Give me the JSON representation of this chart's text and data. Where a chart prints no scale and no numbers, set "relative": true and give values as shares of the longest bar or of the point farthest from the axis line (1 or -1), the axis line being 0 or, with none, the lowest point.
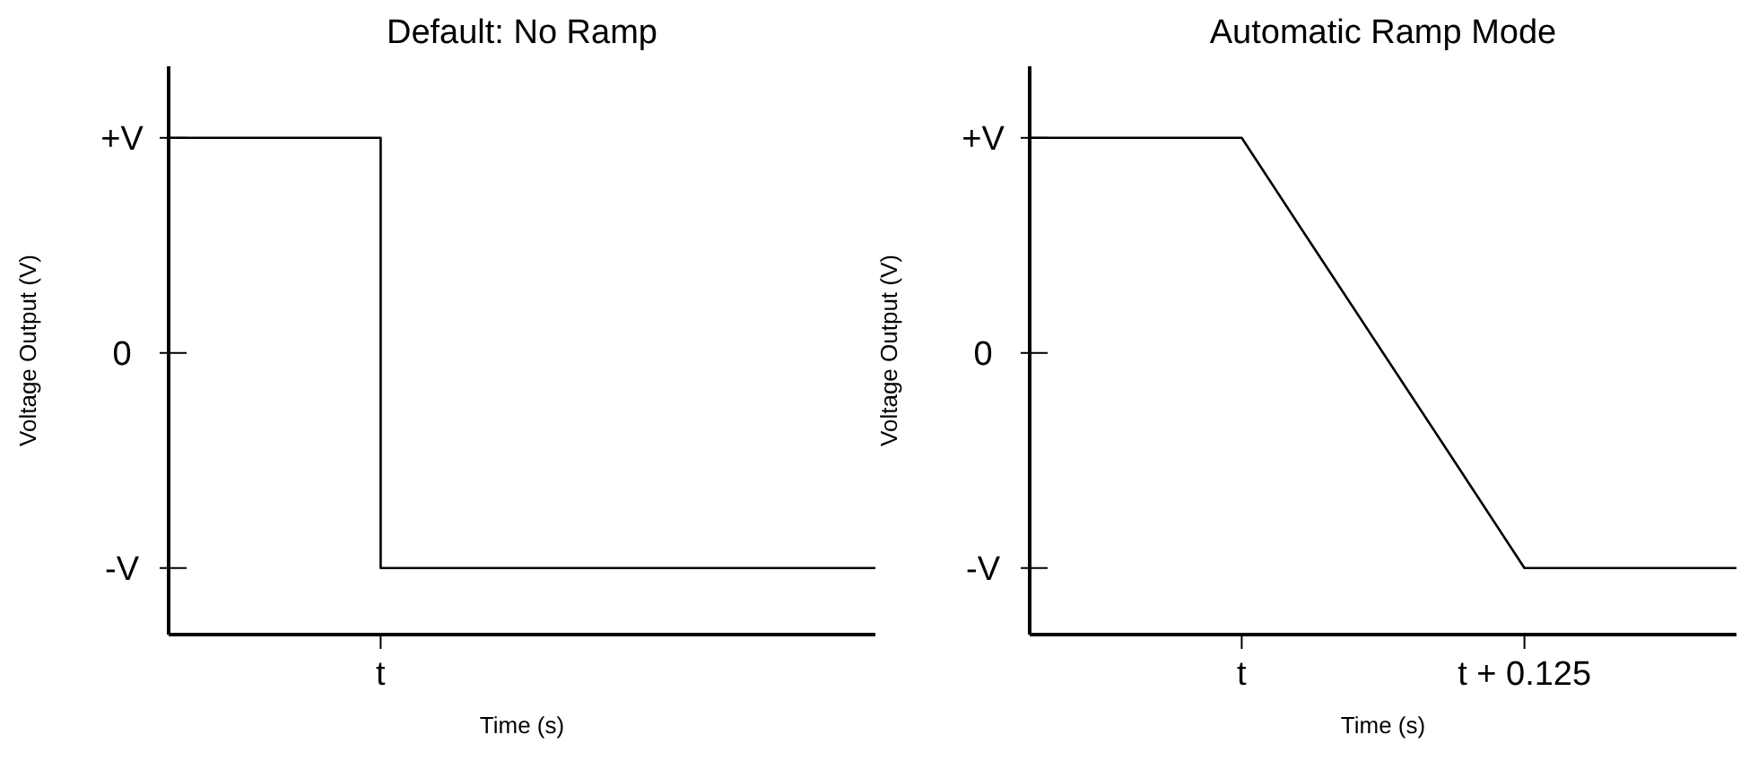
{
  "chart_data": [
    {
      "type": "step",
      "title": "Default: No Ramp",
      "xlabel": "Time (s)",
      "ylabel": "Voltage Output (V)",
      "relative": true,
      "categories": [
        null,
        null,
        null,
        null,
        null,
        null,
        null,
        null,
        null,
        null,
        null
      ],
      "annotations": [
        "+V",
        "0",
        "-V",
        "t"
      ],
      "series": [
        {
          "color": "#000000",
          "values": [
            1,
            1,
            1,
            0.134,
            0.134,
            0.134,
            0.134,
            0.134,
            0.134,
            0.134,
            0.134
          ]
        }
      ]
    },
    {
      "type": "line",
      "title": "Automatic Ramp Mode",
      "xlabel": "Time (s)",
      "ylabel": "Voltage Output (V)",
      "relative": true,
      "categories": [
        null,
        null,
        null,
        "t",
        null,
        null,
        null,
        "t + 0.125",
        null,
        null,
        null
      ],
      "annotations": [
        "+V",
        "0",
        "-V"
      ],
      "series": [
        {
          "color": "#000000",
          "values": [
            1,
            1,
            1,
            1,
            0.783,
            0.567,
            0.351,
            0.134,
            0.134,
            0.134,
            0.134
          ]
        }
      ]
    }
  ]
}
